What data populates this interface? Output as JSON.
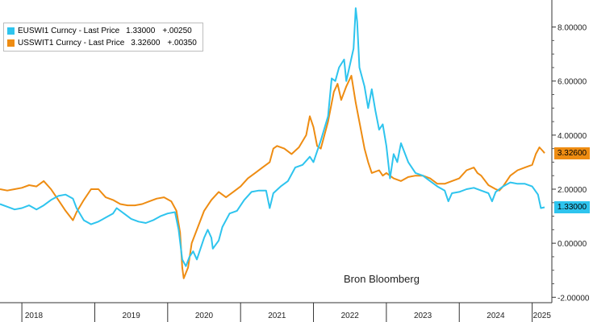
{
  "legend": {
    "items": [
      {
        "name": "EUSWI1 Curncy - Last Price",
        "price": "1.33000",
        "change": "+.00250",
        "color": "#2ec4ee"
      },
      {
        "name": "USSWIT1 Curncy - Last Price",
        "price": "3.32600",
        "change": "+.00350",
        "color": "#ee8c12"
      }
    ]
  },
  "source": "Bron Bloomberg",
  "chart_data": {
    "type": "line",
    "x_range": [
      2017.7,
      2025.27
    ],
    "ylim": [
      -2.2,
      9.0
    ],
    "y_ticks": [
      -2,
      0,
      2,
      4,
      6,
      8
    ],
    "y_tick_labels": [
      "-2.00000",
      "0.00000",
      "2.00000",
      "4.00000",
      "6.00000",
      "8.00000"
    ],
    "x_tick_labels": [
      "2018",
      "2019",
      "2020",
      "2021",
      "2022",
      "2023",
      "2024",
      "2025"
    ],
    "last_values": [
      "3.32600",
      "1.33000"
    ],
    "grid": false,
    "legend_position": "top-left",
    "series": [
      {
        "name": "EUSWI1 Curncy - Last Price",
        "color": "#2ec4ee",
        "points": [
          [
            2017.7,
            1.45
          ],
          [
            2017.8,
            1.35
          ],
          [
            2017.9,
            1.25
          ],
          [
            2018.0,
            1.3
          ],
          [
            2018.1,
            1.4
          ],
          [
            2018.2,
            1.25
          ],
          [
            2018.3,
            1.4
          ],
          [
            2018.4,
            1.6
          ],
          [
            2018.5,
            1.75
          ],
          [
            2018.6,
            1.8
          ],
          [
            2018.7,
            1.65
          ],
          [
            2018.75,
            1.3
          ],
          [
            2018.85,
            0.85
          ],
          [
            2018.95,
            0.7
          ],
          [
            2019.05,
            0.8
          ],
          [
            2019.15,
            0.95
          ],
          [
            2019.25,
            1.1
          ],
          [
            2019.3,
            1.3
          ],
          [
            2019.4,
            1.1
          ],
          [
            2019.5,
            0.9
          ],
          [
            2019.6,
            0.8
          ],
          [
            2019.7,
            0.75
          ],
          [
            2019.8,
            0.85
          ],
          [
            2019.9,
            1.0
          ],
          [
            2020.0,
            1.1
          ],
          [
            2020.1,
            1.15
          ],
          [
            2020.15,
            0.5
          ],
          [
            2020.2,
            -0.6
          ],
          [
            2020.25,
            -0.85
          ],
          [
            2020.3,
            -0.5
          ],
          [
            2020.35,
            -0.3
          ],
          [
            2020.4,
            -0.6
          ],
          [
            2020.5,
            0.2
          ],
          [
            2020.55,
            0.5
          ],
          [
            2020.6,
            0.2
          ],
          [
            2020.62,
            -0.2
          ],
          [
            2020.7,
            0.1
          ],
          [
            2020.75,
            0.6
          ],
          [
            2020.85,
            1.1
          ],
          [
            2020.95,
            1.2
          ],
          [
            2021.05,
            1.6
          ],
          [
            2021.15,
            1.9
          ],
          [
            2021.25,
            1.95
          ],
          [
            2021.35,
            1.95
          ],
          [
            2021.4,
            1.3
          ],
          [
            2021.45,
            1.85
          ],
          [
            2021.55,
            2.1
          ],
          [
            2021.65,
            2.3
          ],
          [
            2021.75,
            2.8
          ],
          [
            2021.85,
            2.9
          ],
          [
            2021.95,
            3.2
          ],
          [
            2022.0,
            3.0
          ],
          [
            2022.1,
            3.8
          ],
          [
            2022.2,
            4.7
          ],
          [
            2022.25,
            6.1
          ],
          [
            2022.3,
            6.0
          ],
          [
            2022.35,
            6.5
          ],
          [
            2022.42,
            6.8
          ],
          [
            2022.45,
            6.0
          ],
          [
            2022.5,
            6.6
          ],
          [
            2022.55,
            7.2
          ],
          [
            2022.58,
            8.7
          ],
          [
            2022.6,
            8.2
          ],
          [
            2022.63,
            6.5
          ],
          [
            2022.7,
            5.8
          ],
          [
            2022.75,
            5.0
          ],
          [
            2022.8,
            5.7
          ],
          [
            2022.85,
            4.9
          ],
          [
            2022.9,
            4.2
          ],
          [
            2022.95,
            4.4
          ],
          [
            2023.0,
            3.6
          ],
          [
            2023.05,
            2.4
          ],
          [
            2023.1,
            3.3
          ],
          [
            2023.15,
            3.0
          ],
          [
            2023.2,
            3.7
          ],
          [
            2023.3,
            3.0
          ],
          [
            2023.4,
            2.6
          ],
          [
            2023.5,
            2.5
          ],
          [
            2023.6,
            2.3
          ],
          [
            2023.7,
            2.1
          ],
          [
            2023.8,
            1.95
          ],
          [
            2023.85,
            1.55
          ],
          [
            2023.9,
            1.85
          ],
          [
            2024.0,
            1.9
          ],
          [
            2024.1,
            2.0
          ],
          [
            2024.2,
            2.05
          ],
          [
            2024.3,
            1.95
          ],
          [
            2024.4,
            1.85
          ],
          [
            2024.45,
            1.55
          ],
          [
            2024.5,
            1.9
          ],
          [
            2024.6,
            2.1
          ],
          [
            2024.7,
            2.25
          ],
          [
            2024.8,
            2.2
          ],
          [
            2024.9,
            2.2
          ],
          [
            2025.0,
            2.1
          ],
          [
            2025.08,
            1.8
          ],
          [
            2025.12,
            1.3
          ],
          [
            2025.17,
            1.33
          ]
        ]
      },
      {
        "name": "USSWIT1 Curncy - Last Price",
        "color": "#ee8c12",
        "points": [
          [
            2017.7,
            2.0
          ],
          [
            2017.8,
            1.95
          ],
          [
            2017.9,
            2.0
          ],
          [
            2018.0,
            2.05
          ],
          [
            2018.1,
            2.15
          ],
          [
            2018.2,
            2.1
          ],
          [
            2018.3,
            2.3
          ],
          [
            2018.4,
            2.0
          ],
          [
            2018.5,
            1.6
          ],
          [
            2018.6,
            1.2
          ],
          [
            2018.7,
            0.85
          ],
          [
            2018.75,
            1.15
          ],
          [
            2018.85,
            1.6
          ],
          [
            2018.95,
            2.0
          ],
          [
            2019.05,
            2.0
          ],
          [
            2019.15,
            1.7
          ],
          [
            2019.25,
            1.6
          ],
          [
            2019.35,
            1.45
          ],
          [
            2019.45,
            1.4
          ],
          [
            2019.55,
            1.4
          ],
          [
            2019.65,
            1.45
          ],
          [
            2019.75,
            1.55
          ],
          [
            2019.85,
            1.65
          ],
          [
            2019.95,
            1.7
          ],
          [
            2020.05,
            1.55
          ],
          [
            2020.12,
            1.2
          ],
          [
            2020.17,
            0.4
          ],
          [
            2020.2,
            -0.9
          ],
          [
            2020.22,
            -1.3
          ],
          [
            2020.28,
            -0.9
          ],
          [
            2020.33,
            0.0
          ],
          [
            2020.4,
            0.5
          ],
          [
            2020.5,
            1.2
          ],
          [
            2020.6,
            1.6
          ],
          [
            2020.7,
            1.9
          ],
          [
            2020.8,
            1.7
          ],
          [
            2020.9,
            1.9
          ],
          [
            2021.0,
            2.1
          ],
          [
            2021.1,
            2.4
          ],
          [
            2021.2,
            2.6
          ],
          [
            2021.3,
            2.8
          ],
          [
            2021.4,
            3.0
          ],
          [
            2021.45,
            3.5
          ],
          [
            2021.5,
            3.6
          ],
          [
            2021.6,
            3.5
          ],
          [
            2021.7,
            3.3
          ],
          [
            2021.8,
            3.55
          ],
          [
            2021.9,
            4.0
          ],
          [
            2021.95,
            4.7
          ],
          [
            2022.0,
            4.3
          ],
          [
            2022.05,
            3.6
          ],
          [
            2022.1,
            3.5
          ],
          [
            2022.2,
            4.5
          ],
          [
            2022.28,
            5.6
          ],
          [
            2022.33,
            5.9
          ],
          [
            2022.38,
            5.3
          ],
          [
            2022.45,
            5.8
          ],
          [
            2022.52,
            6.2
          ],
          [
            2022.58,
            5.2
          ],
          [
            2022.65,
            4.2
          ],
          [
            2022.7,
            3.5
          ],
          [
            2022.75,
            3.0
          ],
          [
            2022.8,
            2.6
          ],
          [
            2022.9,
            2.7
          ],
          [
            2022.95,
            2.5
          ],
          [
            2023.0,
            2.6
          ],
          [
            2023.1,
            2.4
          ],
          [
            2023.2,
            2.3
          ],
          [
            2023.3,
            2.45
          ],
          [
            2023.4,
            2.5
          ],
          [
            2023.5,
            2.5
          ],
          [
            2023.6,
            2.4
          ],
          [
            2023.7,
            2.2
          ],
          [
            2023.8,
            2.2
          ],
          [
            2023.9,
            2.3
          ],
          [
            2024.0,
            2.4
          ],
          [
            2024.1,
            2.7
          ],
          [
            2024.2,
            2.8
          ],
          [
            2024.25,
            2.6
          ],
          [
            2024.3,
            2.5
          ],
          [
            2024.4,
            2.15
          ],
          [
            2024.5,
            2.0
          ],
          [
            2024.55,
            1.95
          ],
          [
            2024.6,
            2.1
          ],
          [
            2024.7,
            2.5
          ],
          [
            2024.8,
            2.7
          ],
          [
            2024.9,
            2.8
          ],
          [
            2025.0,
            2.9
          ],
          [
            2025.05,
            3.3
          ],
          [
            2025.1,
            3.55
          ],
          [
            2025.15,
            3.4
          ],
          [
            2025.17,
            3.33
          ]
        ]
      }
    ]
  }
}
